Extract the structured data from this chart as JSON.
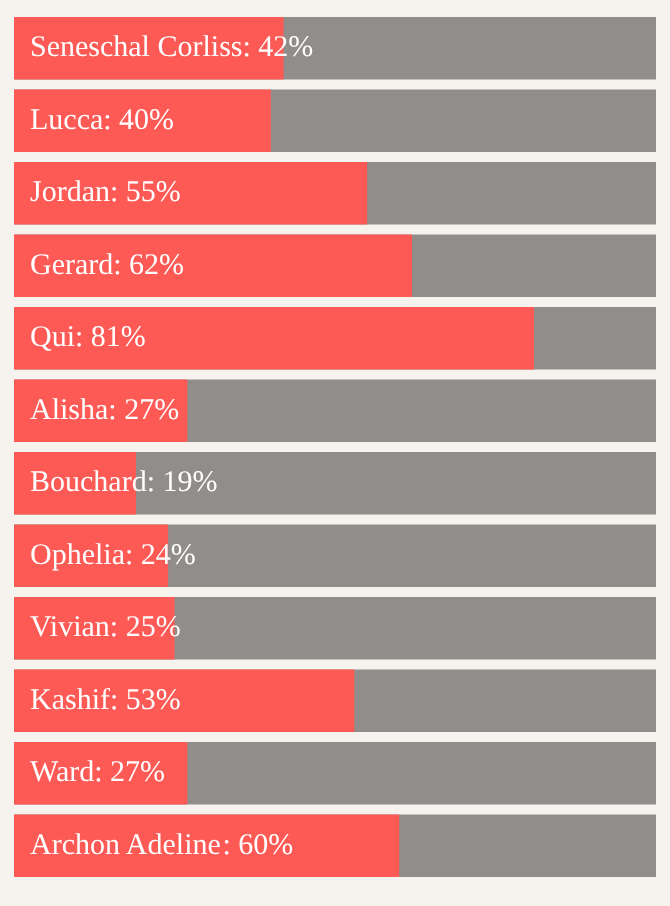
{
  "chart_data": {
    "type": "bar",
    "orientation": "horizontal",
    "categories": [
      "Seneschal Corliss",
      "Lucca",
      "Jordan",
      "Gerard",
      "Qui",
      "Alisha",
      "Bouchard",
      "Ophelia",
      "Vivian",
      "Kashif",
      "Ward",
      "Archon Adeline"
    ],
    "values": [
      42,
      40,
      55,
      62,
      81,
      27,
      19,
      24,
      25,
      53,
      27,
      60
    ],
    "value_labels": [
      ": 42%",
      ": 40%",
      ": 55%",
      ": 62%",
      ": 81%",
      ": 27%",
      ": 19%",
      ": 24%",
      ": 25%",
      ": 53%",
      ": 27%",
      ": 60%"
    ],
    "color": "#fe5a55",
    "tick_labels": "y"
  }
}
